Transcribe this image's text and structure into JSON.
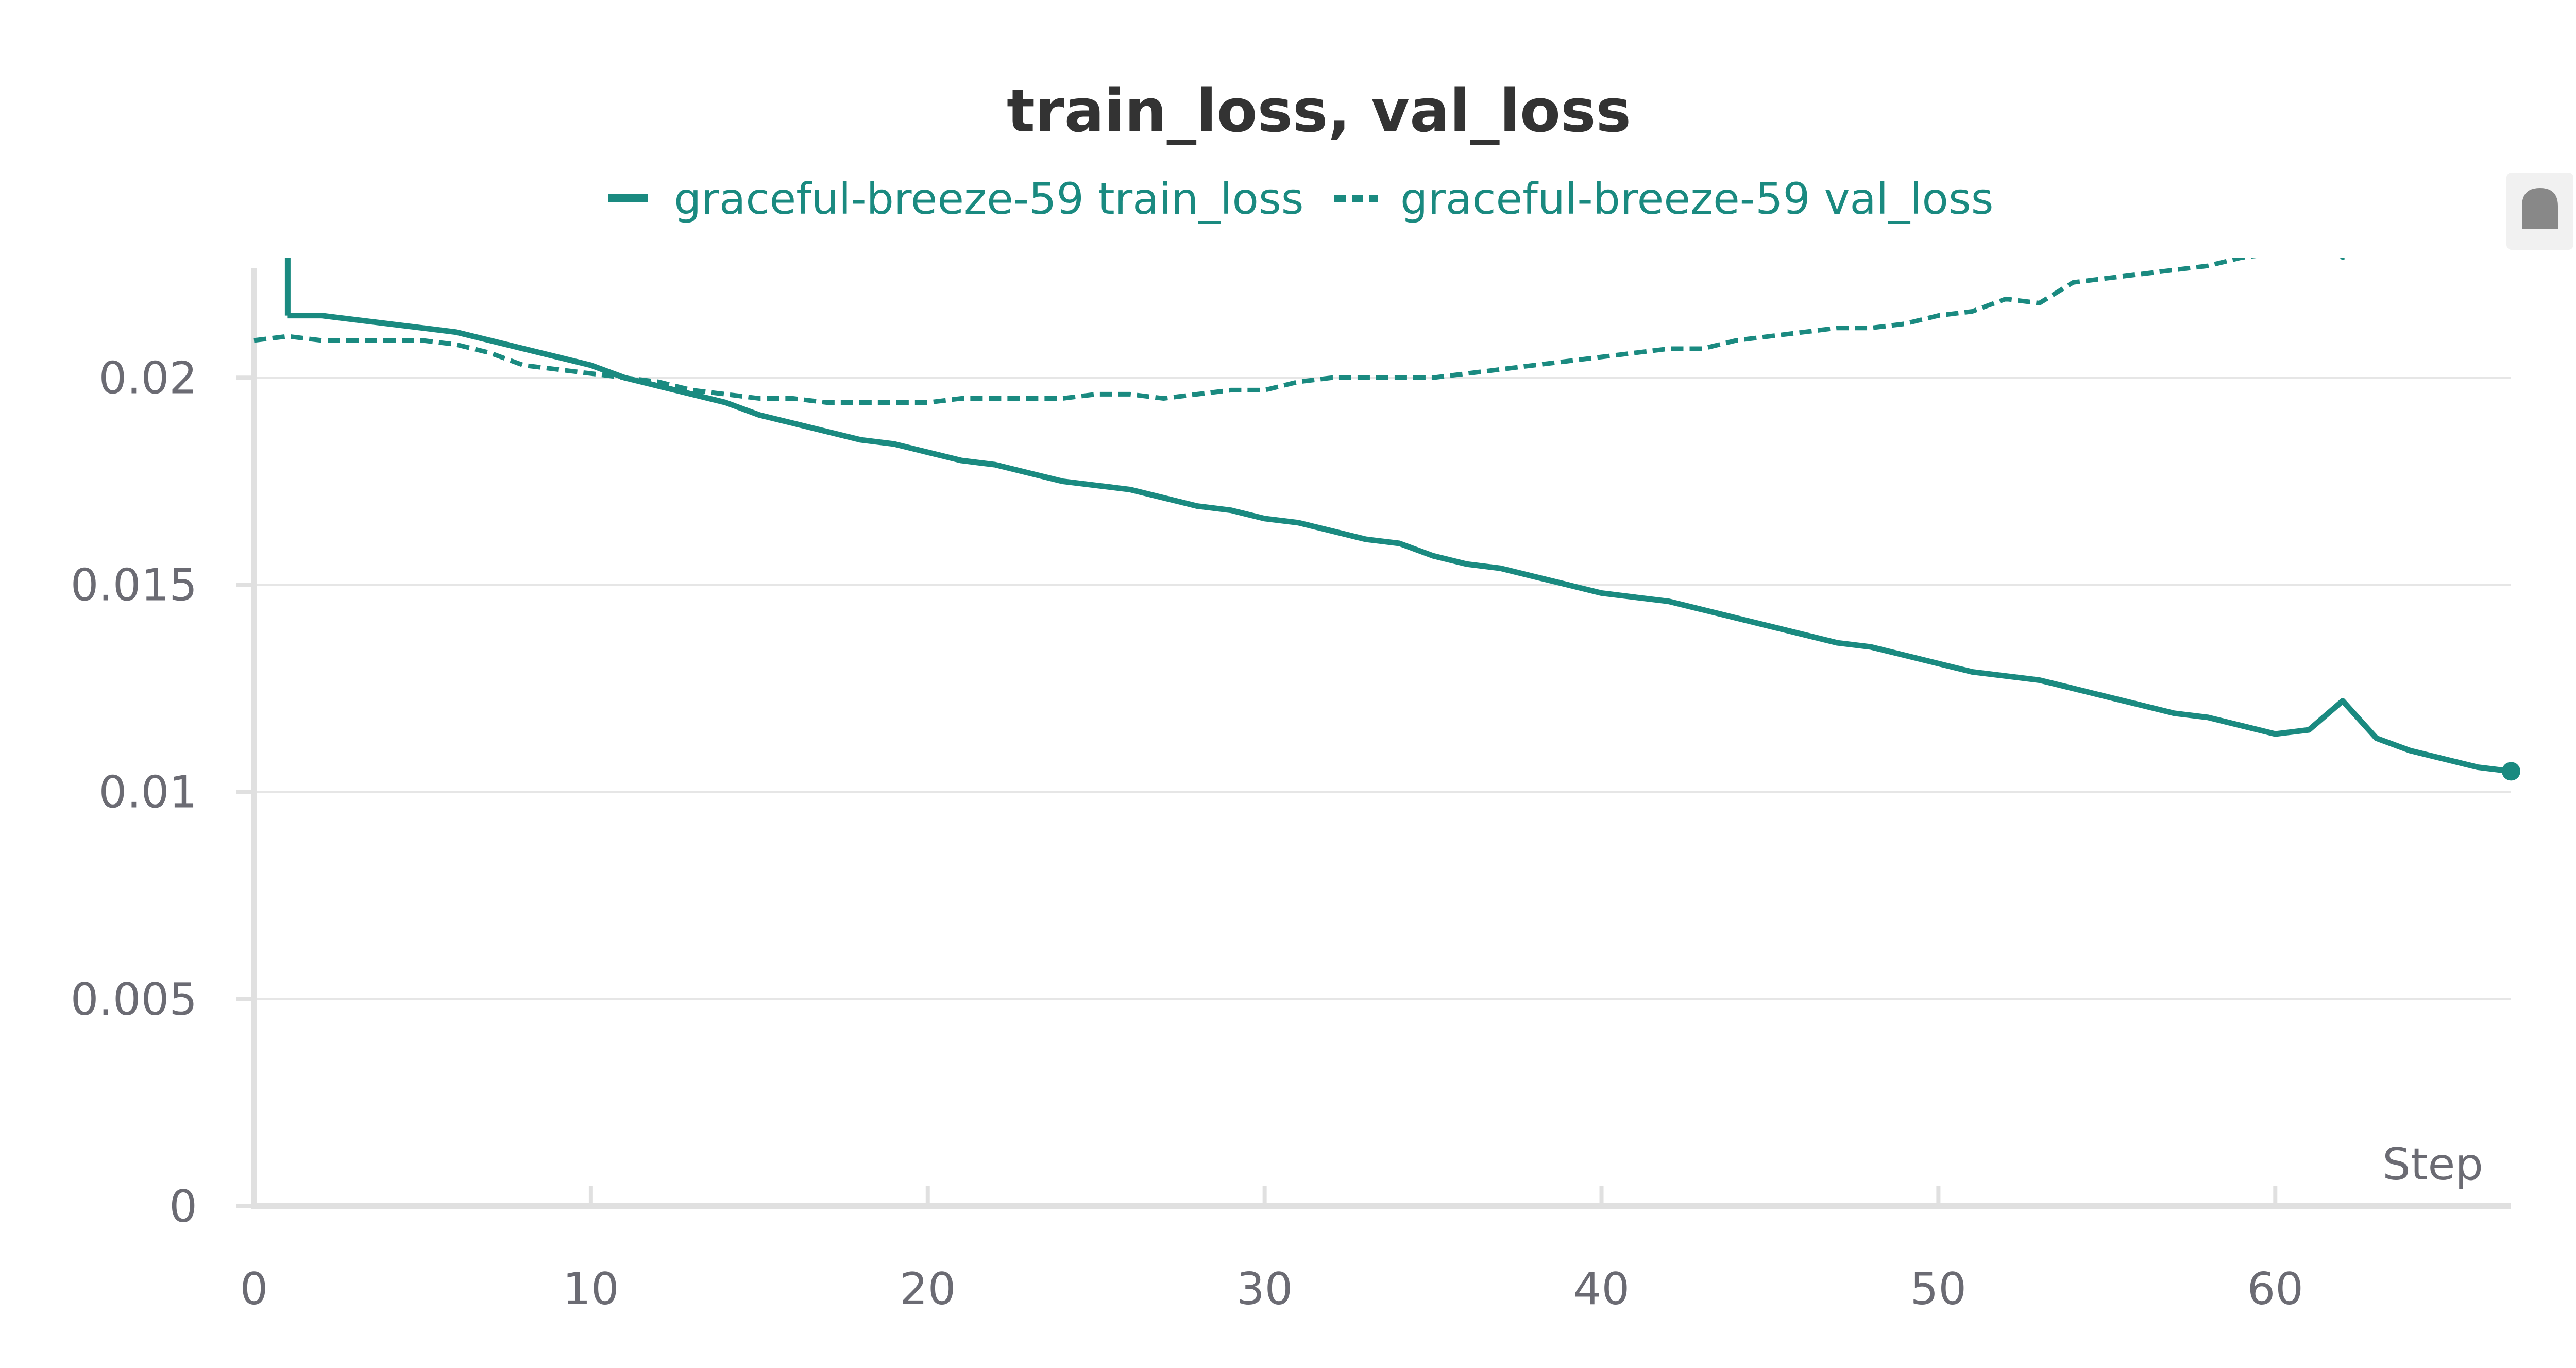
{
  "chart_data": {
    "type": "line",
    "title": "train_loss, val_loss",
    "xlabel": "Step",
    "ylabel": "",
    "xlim": [
      0,
      67
    ],
    "ylim": [
      0,
      0.0229
    ],
    "x_ticks": [
      0,
      10,
      20,
      30,
      40,
      50,
      60
    ],
    "y_ticks": [
      0,
      0.005,
      0.01,
      0.015,
      0.02
    ],
    "y_tick_labels": [
      "0",
      "0.005",
      "0.01",
      "0.015",
      "0.02"
    ],
    "grid": true,
    "legend_position": "top",
    "colors": {
      "series": "#1a8a80",
      "axis": "#e0e0e0",
      "grid": "#e6e6e6",
      "tick_text": "#6b6b73",
      "title": "#333333"
    },
    "series": [
      {
        "name": "graceful-breeze-59 train_loss",
        "style": "solid",
        "x": [
          1,
          2,
          3,
          4,
          5,
          6,
          7,
          8,
          9,
          10,
          11,
          12,
          13,
          14,
          15,
          16,
          17,
          18,
          19,
          20,
          21,
          22,
          23,
          24,
          25,
          26,
          27,
          28,
          29,
          30,
          31,
          32,
          33,
          34,
          35,
          36,
          37,
          38,
          39,
          40,
          41,
          42,
          43,
          44,
          45,
          46,
          47,
          48,
          49,
          50,
          51,
          52,
          53,
          54,
          55,
          56,
          57,
          58,
          59,
          60,
          61,
          62,
          63,
          64,
          65,
          66,
          67
        ],
        "y": [
          0.0215,
          0.0215,
          0.0214,
          0.0213,
          0.0212,
          0.0211,
          0.0209,
          0.0207,
          0.0205,
          0.0203,
          0.02,
          0.0198,
          0.0196,
          0.0194,
          0.0191,
          0.0189,
          0.0187,
          0.0185,
          0.0184,
          0.0182,
          0.018,
          0.0179,
          0.0177,
          0.0175,
          0.0174,
          0.0173,
          0.0171,
          0.0169,
          0.0168,
          0.0166,
          0.0165,
          0.0163,
          0.0161,
          0.016,
          0.0157,
          0.0155,
          0.0154,
          0.0152,
          0.015,
          0.0148,
          0.0147,
          0.0146,
          0.0144,
          0.0142,
          0.014,
          0.0138,
          0.0136,
          0.0135,
          0.0133,
          0.0131,
          0.0129,
          0.0128,
          0.0127,
          0.0125,
          0.0123,
          0.0121,
          0.0119,
          0.0118,
          0.0116,
          0.0114,
          0.0115,
          0.0122,
          0.0113,
          0.011,
          0.0108,
          0.0106,
          0.0105
        ]
      },
      {
        "name": "graceful-breeze-59 val_loss",
        "style": "dashed",
        "x": [
          0,
          1,
          2,
          3,
          4,
          5,
          6,
          7,
          8,
          9,
          10,
          11,
          12,
          13,
          14,
          15,
          16,
          17,
          18,
          19,
          20,
          21,
          22,
          23,
          24,
          25,
          26,
          27,
          28,
          29,
          30,
          31,
          32,
          33,
          34,
          35,
          36,
          37,
          38,
          39,
          40,
          41,
          42,
          43,
          44,
          45,
          46,
          47,
          48,
          49,
          50,
          51,
          52,
          53,
          54,
          55,
          56,
          57,
          58,
          59,
          60,
          61,
          62,
          63,
          64,
          65,
          66,
          67
        ],
        "y": [
          0.0209,
          0.021,
          0.0209,
          0.0209,
          0.0209,
          0.0209,
          0.0208,
          0.0206,
          0.0203,
          0.0202,
          0.0201,
          0.02,
          0.0199,
          0.0197,
          0.0196,
          0.0195,
          0.0195,
          0.0194,
          0.0194,
          0.0194,
          0.0194,
          0.0195,
          0.0195,
          0.0195,
          0.0195,
          0.0196,
          0.0196,
          0.0195,
          0.0196,
          0.0197,
          0.0197,
          0.0199,
          0.02,
          0.02,
          0.02,
          0.02,
          0.0201,
          0.0202,
          0.0203,
          0.0204,
          0.0205,
          0.0206,
          0.0207,
          0.0207,
          0.0209,
          0.021,
          0.0211,
          0.0212,
          0.0212,
          0.0213,
          0.0215,
          0.0216,
          0.0219,
          0.0218,
          0.0223,
          0.0224,
          0.0225,
          0.0226,
          0.0227,
          0.0229,
          0.023,
          0.0238,
          0.0229,
          0.0232,
          0.0234,
          0.0235,
          0.0237,
          0.024
        ]
      }
    ]
  }
}
